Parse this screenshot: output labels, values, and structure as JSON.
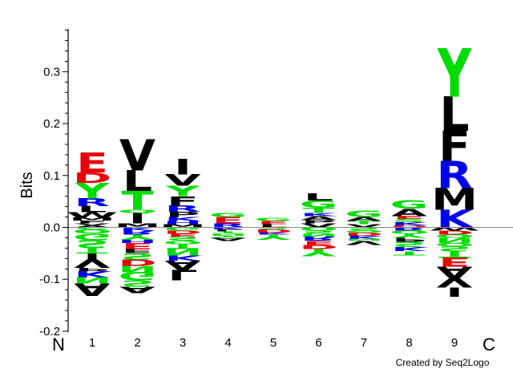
{
  "chart_data": {
    "type": "sequence-logo",
    "ylabel": "Bits",
    "ylim": [
      -0.2,
      0.38
    ],
    "yticks": [
      "-0.2",
      "-0.1",
      "0.0",
      "0.1",
      "0.2",
      "0.3"
    ],
    "n_terminus_label": "N",
    "c_terminus_label": "C",
    "credit": "Created by Seq2Logo",
    "colors": {
      "acidic": "#e8000b",
      "basic": "#0000f0",
      "polar": "#00dc00",
      "hydrophobic": "#000000"
    },
    "positions": [
      {
        "label": "1",
        "positive": [
          [
            "A",
            0.004
          ],
          [
            "V",
            0.004
          ],
          [
            "F",
            0.005
          ],
          [
            "M",
            0.006
          ],
          [
            "W",
            0.01
          ],
          [
            "L",
            0.012
          ],
          [
            "R",
            0.015
          ],
          [
            "Y",
            0.03
          ],
          [
            "D",
            0.02
          ],
          [
            "E",
            0.038
          ]
        ],
        "negative": [
          [
            "C",
            -0.004
          ],
          [
            "Q",
            -0.008
          ],
          [
            "G",
            -0.012
          ],
          [
            "S",
            -0.016
          ],
          [
            "T",
            -0.01
          ],
          [
            "I",
            -0.012
          ],
          [
            "V",
            -0.016
          ],
          [
            "P",
            -0.006
          ],
          [
            "K",
            -0.012
          ],
          [
            "N",
            -0.012
          ],
          [
            "A",
            -0.024
          ]
        ]
      },
      {
        "label": "2",
        "positive": [
          [
            "M",
            0.008
          ],
          [
            "I",
            0.02
          ],
          [
            "Q",
            0.006
          ],
          [
            "T",
            0.036
          ],
          [
            "L",
            0.04
          ],
          [
            "V",
            0.06
          ]
        ],
        "negative": [
          [
            "K",
            -0.006
          ],
          [
            "R",
            -0.008
          ],
          [
            "Y",
            -0.01
          ],
          [
            "H",
            -0.006
          ],
          [
            "E",
            -0.012
          ],
          [
            "F",
            -0.008
          ],
          [
            "S",
            -0.012
          ],
          [
            "D",
            -0.012
          ],
          [
            "N",
            -0.012
          ],
          [
            "G",
            -0.016
          ],
          [
            "S",
            -0.012
          ],
          [
            "A",
            -0.012
          ]
        ]
      },
      {
        "label": "3",
        "positive": [
          [
            "M",
            0.006
          ],
          [
            "H",
            0.006
          ],
          [
            "K",
            0.008
          ],
          [
            "P",
            0.01
          ],
          [
            "R",
            0.012
          ],
          [
            "F",
            0.018
          ],
          [
            "Y",
            0.02
          ],
          [
            "V",
            0.022
          ],
          [
            "I",
            0.03
          ]
        ],
        "negative": [
          [
            "G",
            -0.006
          ],
          [
            "D",
            -0.006
          ],
          [
            "E",
            -0.006
          ],
          [
            "S",
            -0.008
          ],
          [
            "Q",
            -0.006
          ],
          [
            "T",
            -0.01
          ],
          [
            "N",
            -0.012
          ],
          [
            "K",
            -0.01
          ],
          [
            "A",
            -0.018
          ],
          [
            "L",
            -0.02
          ]
        ]
      },
      {
        "label": "4",
        "positive": [
          [
            "R",
            0.008
          ],
          [
            "E",
            0.012
          ],
          [
            "G",
            0.008
          ]
        ],
        "negative": [
          [
            "K",
            -0.004
          ],
          [
            "L",
            -0.004
          ],
          [
            "T",
            -0.004
          ],
          [
            "N",
            -0.004
          ],
          [
            "Y",
            -0.004
          ],
          [
            "A",
            -0.006
          ]
        ]
      },
      {
        "label": "5",
        "positive": [
          [
            "L",
            0.006
          ],
          [
            "E",
            0.006
          ],
          [
            "G",
            0.006
          ]
        ],
        "negative": [
          [
            "S",
            -0.004
          ],
          [
            "D",
            -0.006
          ],
          [
            "K",
            -0.004
          ],
          [
            "Y",
            -0.01
          ]
        ]
      },
      {
        "label": "6",
        "positive": [
          [
            "V",
            0.008
          ],
          [
            "P",
            0.006
          ],
          [
            "A",
            0.008
          ],
          [
            "K",
            0.006
          ],
          [
            "T",
            0.01
          ],
          [
            "G",
            0.014
          ],
          [
            "L",
            0.014
          ]
        ],
        "negative": [
          [
            "Q",
            -0.006
          ],
          [
            "S",
            -0.006
          ],
          [
            "N",
            -0.006
          ],
          [
            "R",
            -0.008
          ],
          [
            "E",
            -0.008
          ],
          [
            "D",
            -0.008
          ],
          [
            "Y",
            -0.014
          ]
        ]
      },
      {
        "label": "7",
        "positive": [
          [
            "V",
            0.006
          ],
          [
            "T",
            0.006
          ],
          [
            "A",
            0.008
          ],
          [
            "G",
            0.012
          ]
        ],
        "negative": [
          [
            "S",
            -0.006
          ],
          [
            "Q",
            -0.004
          ],
          [
            "D",
            -0.006
          ],
          [
            "K",
            -0.006
          ],
          [
            "N",
            -0.004
          ],
          [
            "V",
            -0.008
          ]
        ]
      },
      {
        "label": "8",
        "positive": [
          [
            "D",
            0.004
          ],
          [
            "K",
            0.006
          ],
          [
            "S",
            0.006
          ],
          [
            "E",
            0.006
          ],
          [
            "A",
            0.014
          ],
          [
            "G",
            0.016
          ]
        ],
        "negative": [
          [
            "R",
            -0.006
          ],
          [
            "Q",
            -0.006
          ],
          [
            "Y",
            -0.008
          ],
          [
            "P",
            -0.008
          ],
          [
            "S",
            -0.01
          ],
          [
            "K",
            -0.008
          ],
          [
            "T",
            -0.008
          ]
        ]
      },
      {
        "label": "9",
        "positive": [
          [
            "K",
            0.034
          ],
          [
            "M",
            0.042
          ],
          [
            "R",
            0.052
          ],
          [
            "F",
            0.058
          ],
          [
            "L",
            0.066
          ],
          [
            "Y",
            0.094
          ]
        ],
        "negative": [
          [
            "W",
            -0.006
          ],
          [
            "D",
            -0.008
          ],
          [
            "Q",
            -0.006
          ],
          [
            "N",
            -0.01
          ],
          [
            "Q",
            -0.006
          ],
          [
            "S",
            -0.01
          ],
          [
            "T",
            -0.012
          ],
          [
            "E",
            -0.018
          ],
          [
            "A",
            -0.022
          ],
          [
            "V",
            -0.018
          ],
          [
            "I",
            -0.018
          ]
        ]
      }
    ]
  }
}
